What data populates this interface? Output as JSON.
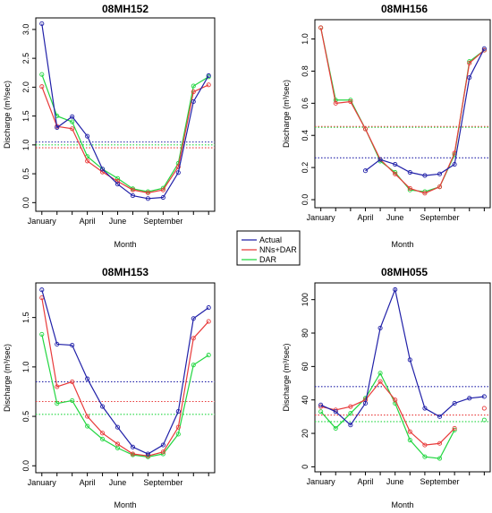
{
  "colors": {
    "Actual": "#2020a8",
    "NNs+DAR": "#e83a3a",
    "DAR": "#22d640"
  },
  "legend": {
    "placement": "center",
    "entries": [
      "Actual",
      "NNs+DAR",
      "DAR"
    ]
  },
  "chart_data": [
    {
      "type": "line",
      "title": "08MH152",
      "xlabel": "Month",
      "ylabel": "Discharge (m³/sec)",
      "x_ticks": [
        "January",
        "April",
        "June",
        "September"
      ],
      "x_tick_positions": [
        1,
        4,
        6,
        9
      ],
      "x": [
        1,
        2,
        3,
        4,
        5,
        6,
        7,
        8,
        9,
        10,
        11,
        12
      ],
      "xlim": [
        0.6,
        12.4
      ],
      "ylim": [
        -0.15,
        3.2
      ],
      "y_ticks": [
        0.0,
        0.5,
        1.0,
        1.5,
        2.0,
        2.5,
        3.0
      ],
      "y_tick_labels": [
        "0.0",
        "0.5",
        "1.0",
        "1.5",
        "2.0",
        "2.5",
        "3.0"
      ],
      "series": [
        {
          "name": "Actual",
          "values": [
            3.1,
            1.3,
            1.49,
            1.15,
            0.58,
            0.32,
            0.12,
            0.07,
            0.09,
            0.52,
            1.75,
            2.2
          ]
        },
        {
          "name": "NNs+DAR",
          "values": [
            2.01,
            1.32,
            1.28,
            0.72,
            0.53,
            0.37,
            0.22,
            0.17,
            0.22,
            0.62,
            1.92,
            2.04
          ]
        },
        {
          "name": "DAR",
          "values": [
            2.22,
            1.5,
            1.4,
            0.8,
            0.58,
            0.42,
            0.24,
            0.19,
            0.25,
            0.68,
            2.02,
            2.18
          ]
        }
      ],
      "hlines": [
        {
          "series": "Actual",
          "value": 1.05
        },
        {
          "series": "NNs+DAR",
          "value": 0.95
        },
        {
          "series": "DAR",
          "value": 1.0
        }
      ]
    },
    {
      "type": "line",
      "title": "08MH156",
      "xlabel": "Month",
      "ylabel": "Discharge (m³/sec)",
      "x_ticks": [
        "January",
        "April",
        "June",
        "September"
      ],
      "x_tick_positions": [
        1,
        4,
        6,
        9
      ],
      "x": [
        1,
        2,
        3,
        4,
        5,
        6,
        7,
        8,
        9,
        10,
        11,
        12
      ],
      "xlim": [
        0.6,
        12.4
      ],
      "ylim": [
        -0.05,
        1.12
      ],
      "y_ticks": [
        0.0,
        0.2,
        0.4,
        0.6,
        0.8,
        1.0
      ],
      "y_tick_labels": [
        "0.0",
        "0.2",
        "0.4",
        "0.6",
        "0.8",
        "1.0"
      ],
      "series": [
        {
          "name": "Actual",
          "values": [
            null,
            null,
            null,
            0.18,
            0.25,
            0.22,
            0.17,
            0.15,
            0.16,
            0.22,
            0.76,
            0.94
          ]
        },
        {
          "name": "NNs+DAR",
          "values": [
            1.07,
            0.6,
            0.61,
            0.44,
            0.25,
            0.16,
            0.07,
            0.04,
            0.08,
            0.29,
            0.85,
            0.93
          ]
        },
        {
          "name": "DAR",
          "values": [
            1.07,
            0.62,
            0.62,
            0.44,
            0.24,
            0.17,
            0.06,
            0.05,
            0.08,
            0.28,
            0.86,
            0.93
          ]
        }
      ],
      "hlines": [
        {
          "series": "Actual",
          "value": 0.26
        },
        {
          "series": "NNs+DAR",
          "value": 0.455
        },
        {
          "series": "DAR",
          "value": 0.45
        }
      ]
    },
    {
      "type": "line",
      "title": "08MH153",
      "xlabel": "Month",
      "ylabel": "Discharge (m³/sec)",
      "x_ticks": [
        "January",
        "April",
        "June",
        "September"
      ],
      "x_tick_positions": [
        1,
        4,
        6,
        9
      ],
      "x": [
        1,
        2,
        3,
        4,
        5,
        6,
        7,
        8,
        9,
        10,
        11,
        12
      ],
      "xlim": [
        0.6,
        12.4
      ],
      "ylim": [
        -0.07,
        1.85
      ],
      "y_ticks": [
        0.0,
        0.5,
        1.0,
        1.5
      ],
      "y_tick_labels": [
        "0.0",
        "0.5",
        "1.0",
        "1.5"
      ],
      "series": [
        {
          "name": "Actual",
          "values": [
            1.78,
            1.23,
            1.22,
            0.88,
            0.6,
            0.39,
            0.19,
            0.12,
            0.21,
            0.55,
            1.49,
            1.6
          ]
        },
        {
          "name": "NNs+DAR",
          "values": [
            1.7,
            0.8,
            0.85,
            0.5,
            0.33,
            0.22,
            0.12,
            0.1,
            0.14,
            0.39,
            1.29,
            1.46
          ]
        },
        {
          "name": "DAR",
          "values": [
            1.33,
            0.63,
            0.66,
            0.4,
            0.27,
            0.18,
            0.11,
            0.09,
            0.12,
            0.32,
            1.02,
            1.12
          ]
        }
      ],
      "hlines": [
        {
          "series": "Actual",
          "value": 0.85
        },
        {
          "series": "NNs+DAR",
          "value": 0.65
        },
        {
          "series": "DAR",
          "value": 0.52
        }
      ]
    },
    {
      "type": "line",
      "title": "08MH055",
      "xlabel": "Month",
      "ylabel": "Discharge (m³/sec)",
      "x_ticks": [
        "January",
        "April",
        "June",
        "September"
      ],
      "x_tick_positions": [
        1,
        4,
        6,
        9
      ],
      "x": [
        1,
        2,
        3,
        4,
        5,
        6,
        7,
        8,
        9,
        10,
        11,
        12
      ],
      "xlim": [
        0.6,
        12.4
      ],
      "ylim": [
        -3,
        110
      ],
      "y_ticks": [
        0,
        20,
        40,
        60,
        80,
        100
      ],
      "y_tick_labels": [
        "0",
        "20",
        "40",
        "60",
        "80",
        "100"
      ],
      "series": [
        {
          "name": "Actual",
          "values": [
            37,
            33,
            25,
            38,
            83,
            106,
            64,
            35,
            30,
            38,
            41,
            42
          ]
        },
        {
          "name": "NNs+DAR",
          "values": [
            36,
            34,
            36,
            40,
            51,
            40,
            21,
            13,
            14,
            23,
            null,
            35
          ]
        },
        {
          "name": "DAR",
          "values": [
            33,
            23,
            32,
            41,
            56,
            38,
            16,
            6,
            5,
            22,
            null,
            28
          ]
        }
      ],
      "hlines": [
        {
          "series": "Actual",
          "value": 48
        },
        {
          "series": "NNs+DAR",
          "value": 31
        },
        {
          "series": "DAR",
          "value": 27
        }
      ]
    }
  ]
}
